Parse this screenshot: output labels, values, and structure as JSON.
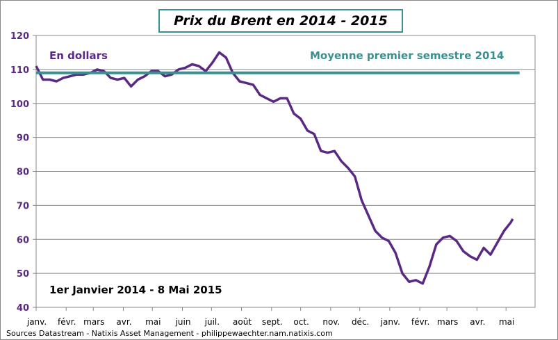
{
  "colors": {
    "series": "#5a2a82",
    "mean": "#3a8f8f",
    "title_border": "#3a8f8f"
  },
  "chart_data": {
    "type": "line",
    "title": "Prix du Brent en 2014 - 2015",
    "unit_label": "En dollars",
    "period_label": "1er Janvier 2014 - 8 Mai 2015",
    "ylim": [
      40,
      120
    ],
    "yticks": [
      40,
      50,
      60,
      70,
      80,
      90,
      100,
      110,
      120
    ],
    "grid": true,
    "xticks": [
      "janv.",
      "févr.",
      "mars",
      "avr.",
      "mai",
      "juin",
      "juil.",
      "août",
      "sept.",
      "oct.",
      "nov.",
      "déc.",
      "janv.",
      "févr.",
      "mars",
      "avr.",
      "mai"
    ],
    "xrange": [
      "2014-01-01",
      "2015-05-31"
    ],
    "series": [
      {
        "name": "Brent",
        "x": [
          "2014-01-01",
          "2014-01-08",
          "2014-01-15",
          "2014-01-22",
          "2014-01-29",
          "2014-02-05",
          "2014-02-12",
          "2014-02-19",
          "2014-02-26",
          "2014-03-05",
          "2014-03-12",
          "2014-03-19",
          "2014-03-26",
          "2014-04-02",
          "2014-04-09",
          "2014-04-16",
          "2014-04-23",
          "2014-04-30",
          "2014-05-07",
          "2014-05-14",
          "2014-05-21",
          "2014-05-28",
          "2014-06-04",
          "2014-06-11",
          "2014-06-18",
          "2014-06-25",
          "2014-07-02",
          "2014-07-09",
          "2014-07-16",
          "2014-07-23",
          "2014-07-30",
          "2014-08-06",
          "2014-08-13",
          "2014-08-20",
          "2014-08-27",
          "2014-09-03",
          "2014-09-10",
          "2014-09-17",
          "2014-09-24",
          "2014-10-01",
          "2014-10-08",
          "2014-10-15",
          "2014-10-22",
          "2014-10-29",
          "2014-11-05",
          "2014-11-12",
          "2014-11-19",
          "2014-11-26",
          "2014-12-03",
          "2014-12-10",
          "2014-12-17",
          "2014-12-24",
          "2014-12-31",
          "2015-01-07",
          "2015-01-14",
          "2015-01-21",
          "2015-01-28",
          "2015-02-04",
          "2015-02-11",
          "2015-02-18",
          "2015-02-25",
          "2015-03-04",
          "2015-03-11",
          "2015-03-18",
          "2015-03-25",
          "2015-04-01",
          "2015-04-08",
          "2015-04-15",
          "2015-04-22",
          "2015-04-29",
          "2015-05-06",
          "2015-05-08"
        ],
        "values": [
          111,
          107,
          107,
          106.5,
          107.5,
          108,
          108.5,
          108.5,
          109,
          110,
          109.5,
          107.5,
          107,
          107.5,
          105,
          107,
          108,
          109.5,
          109.5,
          108,
          108.5,
          110,
          110.5,
          111.5,
          111,
          109.5,
          112,
          115,
          113.5,
          109,
          106.5,
          106,
          105.5,
          102.5,
          101.5,
          100.5,
          101.5,
          101.5,
          97,
          95.5,
          92,
          91,
          86,
          85.5,
          86,
          83,
          81,
          78.5,
          71.5,
          67,
          62.5,
          60.5,
          59.5,
          56,
          50,
          47.5,
          48,
          47,
          52,
          58.5,
          60.5,
          61,
          59.5,
          56.5,
          55,
          54,
          57.5,
          55.5,
          59,
          62.5,
          65,
          66
        ]
      },
      {
        "name": "Moyenne premier semestre 2014",
        "x": [
          "2014-01-01",
          "2015-05-15"
        ],
        "values": [
          109,
          109
        ]
      }
    ]
  },
  "sources": "Sources Datastream - Natixis Asset Management - philippewaechter.nam.natixis.com"
}
